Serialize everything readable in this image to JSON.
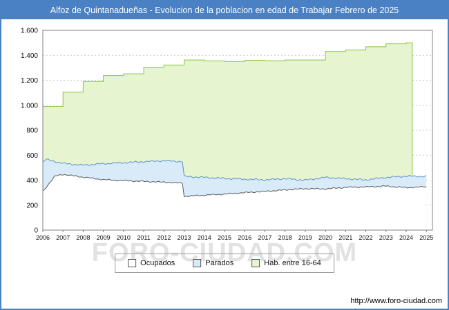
{
  "header": {
    "title": "Alfoz de Quintanadueñas - Evolucion de la poblacion en edad de Trabajar Febrero de 2025"
  },
  "watermark": "FORO-CIUDAD.COM",
  "footer": {
    "url": "http://www.foro-ciudad.com"
  },
  "colors": {
    "titlebar": "#4a80c4",
    "frame": "#4a80c4",
    "grid": "#c9c9c9",
    "axis": "#808080",
    "watermark": "#e2e2e2"
  },
  "chart_data": {
    "type": "area",
    "title": "Alfoz de Quintanadueñas - Evolucion de la poblacion en edad de Trabajar Febrero de 2025",
    "xlabel": "",
    "ylabel": "",
    "ylim": [
      0,
      1600
    ],
    "ytick_step": 200,
    "ytick_labels": [
      "0",
      "200",
      "400",
      "600",
      "800",
      "1.000",
      "1.200",
      "1.400",
      "1.600"
    ],
    "grid": true,
    "legend_position": "bottom",
    "years": [
      2006,
      2007,
      2008,
      2009,
      2010,
      2011,
      2012,
      2013,
      2014,
      2015,
      2016,
      2017,
      2018,
      2019,
      2020,
      2021,
      2022,
      2023,
      2024,
      2025
    ],
    "series": [
      {
        "name": "Ocupados",
        "fill": "#ffffff",
        "line": "#5a5a5a",
        "points": [
          [
            2006.0,
            310
          ],
          [
            2006.6,
            432
          ],
          [
            2007.0,
            446
          ],
          [
            2008.0,
            424
          ],
          [
            2009.0,
            404
          ],
          [
            2010.0,
            396
          ],
          [
            2011.0,
            390
          ],
          [
            2012.0,
            384
          ],
          [
            2012.92,
            376
          ],
          [
            2013.0,
            270
          ],
          [
            2014.0,
            280
          ],
          [
            2015.0,
            288
          ],
          [
            2016.0,
            300
          ],
          [
            2017.0,
            310
          ],
          [
            2018.0,
            322
          ],
          [
            2019.0,
            332
          ],
          [
            2020.0,
            330
          ],
          [
            2021.0,
            342
          ],
          [
            2022.0,
            346
          ],
          [
            2023.0,
            352
          ],
          [
            2024.0,
            340
          ],
          [
            2025.083,
            348
          ]
        ]
      },
      {
        "name": "Parados",
        "fill": "#d9eaf8",
        "line": "#5b93c9",
        "points_stacked_top": [
          [
            2006.0,
            545
          ],
          [
            2006.17,
            566
          ],
          [
            2007.0,
            534
          ],
          [
            2008.0,
            520
          ],
          [
            2009.0,
            532
          ],
          [
            2010.0,
            540
          ],
          [
            2011.0,
            548
          ],
          [
            2012.0,
            556
          ],
          [
            2012.92,
            548
          ],
          [
            2013.0,
            430
          ],
          [
            2014.0,
            422
          ],
          [
            2015.0,
            414
          ],
          [
            2016.0,
            408
          ],
          [
            2017.0,
            402
          ],
          [
            2018.0,
            412
          ],
          [
            2019.0,
            400
          ],
          [
            2020.0,
            422
          ],
          [
            2021.0,
            412
          ],
          [
            2022.0,
            402
          ],
          [
            2023.0,
            422
          ],
          [
            2024.0,
            432
          ],
          [
            2025.083,
            430
          ]
        ]
      },
      {
        "name": "Hab. entre 16-64",
        "fill": "#e6f4cf",
        "line": "#86c440",
        "steps": [
          [
            2006,
            990
          ],
          [
            2007,
            1105
          ],
          [
            2008,
            1190
          ],
          [
            2009,
            1238
          ],
          [
            2010,
            1252
          ],
          [
            2011,
            1305
          ],
          [
            2012,
            1322
          ],
          [
            2013,
            1362
          ],
          [
            2014,
            1355
          ],
          [
            2015,
            1350
          ],
          [
            2016,
            1360
          ],
          [
            2017,
            1356
          ],
          [
            2018,
            1362
          ],
          [
            2019,
            1362
          ],
          [
            2020,
            1430
          ],
          [
            2021,
            1442
          ],
          [
            2022,
            1468
          ],
          [
            2023,
            1492
          ],
          [
            2024,
            1500
          ]
        ],
        "end_x": 2024.3
      }
    ]
  }
}
